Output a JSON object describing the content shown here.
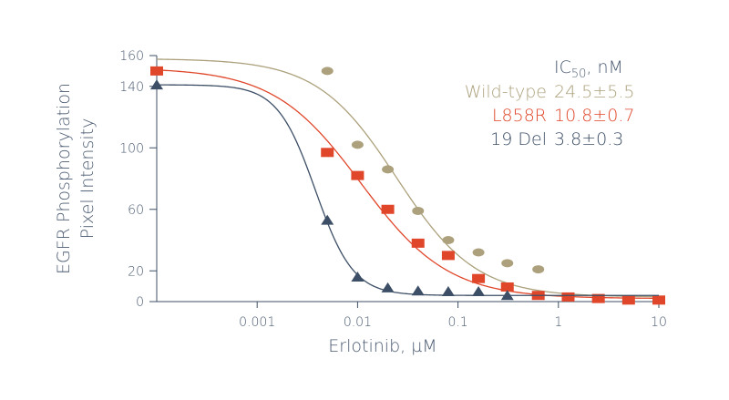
{
  "chart_data": {
    "type": "scatter",
    "x_label": "Erlotinib, µM",
    "y_label": [
      "EGFR Phosphorylation",
      "Pixel Intensity"
    ],
    "xscale": "log",
    "xlim": [
      0.0001,
      10
    ],
    "xticks": [
      0.001,
      0.01,
      0.1,
      1,
      10
    ],
    "ylim": [
      0,
      160
    ],
    "yticks": [
      0,
      20,
      60,
      100,
      140,
      160
    ],
    "legend_title": {
      "text": "IC",
      "sub": "50",
      "suffix": ", nM"
    },
    "x": [
      0.0001,
      0.005,
      0.01,
      0.02,
      0.04,
      0.08,
      0.16,
      0.31,
      0.63,
      1.25,
      2.5,
      5,
      10
    ],
    "series": [
      {
        "name": "Wild-type",
        "ic50_label": "24.5±5.5",
        "color": "#aca17c",
        "marker": "ellipse",
        "values": [
          null,
          150,
          102,
          86,
          59,
          40,
          32,
          25,
          21,
          null,
          null,
          null,
          null
        ],
        "fit": {
          "top": 158,
          "bottom": 3,
          "ic50": 0.0245,
          "hill": 1.1
        }
      },
      {
        "name": "L858R",
        "ic50_label": "10.8±0.7",
        "color": "#e0462a",
        "marker": "square",
        "values": [
          150,
          97,
          82,
          60,
          38,
          30,
          15,
          9.5,
          4,
          3,
          2,
          1,
          1
        ],
        "fit": {
          "top": 152,
          "bottom": 2,
          "ic50": 0.0108,
          "hill": 1.0
        }
      },
      {
        "name": "19 Del",
        "ic50_label": "3.8±0.3",
        "color": "#3d4f66",
        "marker": "triangle",
        "values": [
          141,
          53,
          16,
          9,
          7,
          6.5,
          6.5,
          4,
          null,
          null,
          null,
          null,
          null
        ],
        "fit": {
          "top": 141,
          "bottom": 4,
          "ic50": 0.0038,
          "hill": 2.3
        }
      }
    ]
  }
}
